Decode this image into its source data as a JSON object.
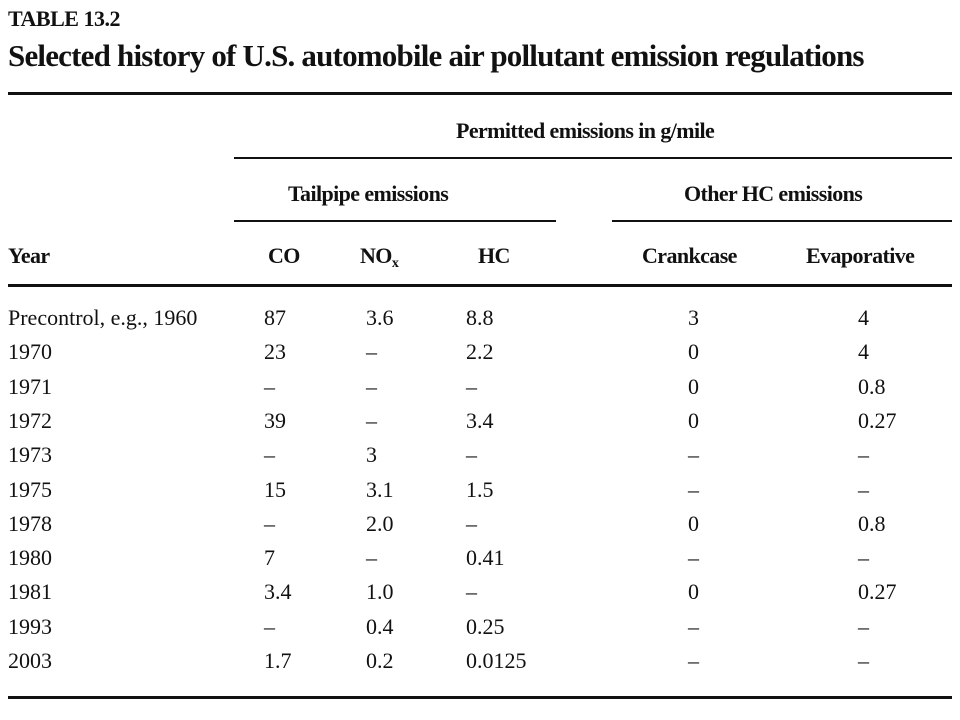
{
  "table": {
    "label": "TABLE 13.2",
    "title": "Selected history of U.S. automobile air pollutant emission regulations",
    "group_header": "Permitted emissions in g/mile",
    "subgroup_tailpipe": "Tailpipe emissions",
    "subgroup_other": "Other HC emissions",
    "columns": {
      "year": "Year",
      "co": "CO",
      "nox_main": "NO",
      "nox_sub": "x",
      "hc": "HC",
      "crankcase": "Crankcase",
      "evaporative": "Evaporative"
    },
    "rows": [
      {
        "year": "Precontrol, e.g., 1960",
        "co": "87",
        "nox": "3.6",
        "hc": "8.8",
        "crankcase": "3",
        "evaporative": "4"
      },
      {
        "year": "1970",
        "co": "23",
        "nox": "–",
        "hc": "2.2",
        "crankcase": "0",
        "evaporative": "4"
      },
      {
        "year": "1971",
        "co": "–",
        "nox": "–",
        "hc": "–",
        "crankcase": "0",
        "evaporative": "0.8"
      },
      {
        "year": "1972",
        "co": "39",
        "nox": "–",
        "hc": "3.4",
        "crankcase": "0",
        "evaporative": "0.27"
      },
      {
        "year": "1973",
        "co": "–",
        "nox": "3",
        "hc": "–",
        "crankcase": "–",
        "evaporative": "–"
      },
      {
        "year": "1975",
        "co": "15",
        "nox": "3.1",
        "hc": "1.5",
        "crankcase": "–",
        "evaporative": "–"
      },
      {
        "year": "1978",
        "co": "–",
        "nox": "2.0",
        "hc": "–",
        "crankcase": "0",
        "evaporative": "0.8"
      },
      {
        "year": "1980",
        "co": "7",
        "nox": "–",
        "hc": "0.41",
        "crankcase": "–",
        "evaporative": "–"
      },
      {
        "year": "1981",
        "co": "3.4",
        "nox": "1.0",
        "hc": "–",
        "crankcase": "0",
        "evaporative": "0.27"
      },
      {
        "year": "1993",
        "co": "–",
        "nox": "0.4",
        "hc": "0.25",
        "crankcase": "–",
        "evaporative": "–"
      },
      {
        "year": "2003",
        "co": "1.7",
        "nox": "0.2",
        "hc": "0.0125",
        "crankcase": "–",
        "evaporative": "–"
      }
    ]
  }
}
